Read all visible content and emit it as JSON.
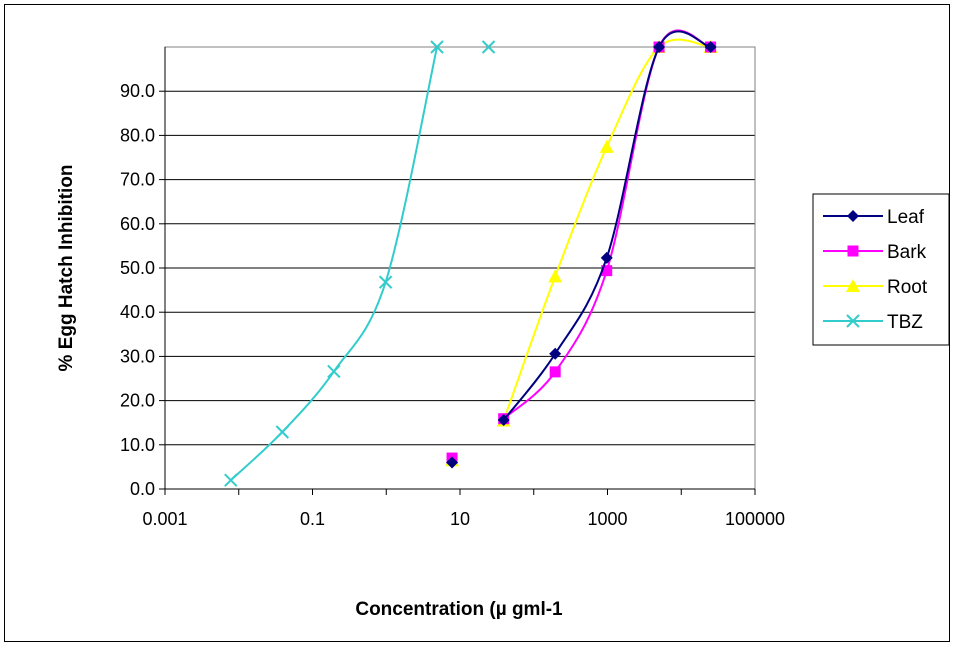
{
  "chart_data": {
    "type": "scatter",
    "title": "",
    "xlabel": "Concentration (µ gml-1",
    "ylabel": "% Egg Hatch Inhibition",
    "x_scale": "log",
    "xlim": [
      0.001,
      100000
    ],
    "ylim": [
      0,
      100
    ],
    "x_tick_labels": [
      "0.001",
      "0.1",
      "10",
      "1000",
      "100000"
    ],
    "y_tick_labels": [
      "0.0",
      "10.0",
      "20.0",
      "30.0",
      "40.0",
      "50.0",
      "60.0",
      "70.0",
      "80.0",
      "90.0"
    ],
    "grid": "horizontal",
    "legend_position": "right",
    "series": [
      {
        "name": "Leaf",
        "color": "#000080",
        "marker": "diamond",
        "x": [
          7.8,
          39.1,
          195.3,
          976.6,
          5000,
          25000
        ],
        "y": [
          6.0,
          15.6,
          30.6,
          52.3,
          100.0,
          100.0
        ]
      },
      {
        "name": "Bark",
        "color": "#FF00FF",
        "marker": "square",
        "x": [
          7.8,
          39.1,
          195.3,
          976.6,
          5000,
          25000
        ],
        "y": [
          7.0,
          15.9,
          26.5,
          49.4,
          100.0,
          100.0
        ]
      },
      {
        "name": "Root",
        "color": "#FFFF00",
        "marker": "triangle",
        "x": [
          7.8,
          39.1,
          195.3,
          976.6,
          5000,
          25000
        ],
        "y": [
          6.5,
          15.5,
          48.1,
          77.4,
          100.0,
          100.0
        ]
      },
      {
        "name": "TBZ",
        "color": "#33CCCC",
        "marker": "x",
        "x": [
          0.0078,
          0.039,
          0.195,
          0.98,
          4.88,
          24.4
        ],
        "y": [
          2.0,
          12.9,
          26.6,
          46.8,
          100.0,
          100.0
        ]
      }
    ]
  }
}
